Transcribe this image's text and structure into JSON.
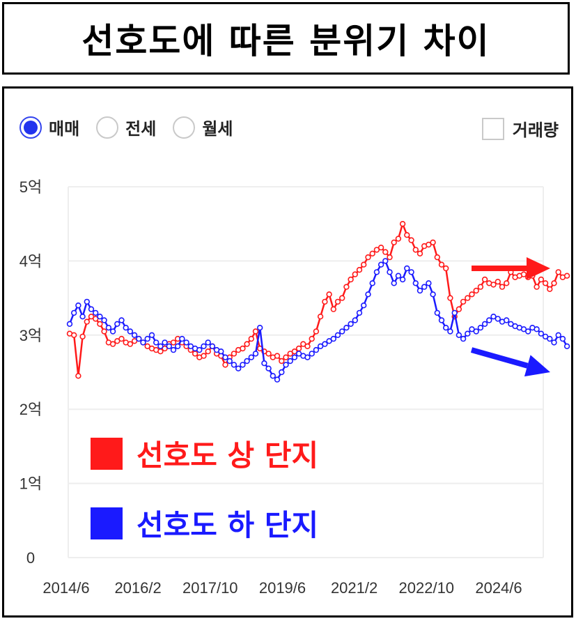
{
  "title": "선호도에 따른 분위기 차이",
  "controls": {
    "radios": [
      {
        "label": "매매",
        "selected": true
      },
      {
        "label": "전세",
        "selected": false
      },
      {
        "label": "월세",
        "selected": false
      }
    ],
    "volume_label": "거래량",
    "volume_checked": false
  },
  "colors": {
    "high": "#ff1a1a",
    "low": "#1a1aff",
    "grid": "#eeeeee"
  },
  "chart_data": {
    "type": "line",
    "y_ticks": [
      "0",
      "1억",
      "2억",
      "3억",
      "4억",
      "5억"
    ],
    "ylim": [
      0,
      5
    ],
    "xlim": [
      2014.5,
      2026.0
    ],
    "x_ticks": [
      {
        "label": "2014/6",
        "value": 2014.42
      },
      {
        "label": "2016/2",
        "value": 2016.08
      },
      {
        "label": "2017/10",
        "value": 2017.75
      },
      {
        "label": "2019/6",
        "value": 2019.42
      },
      {
        "label": "2021/2",
        "value": 2021.08
      },
      {
        "label": "2022/10",
        "value": 2022.75
      },
      {
        "label": "2024/6",
        "value": 2024.42
      }
    ],
    "grid": true,
    "series": [
      {
        "name": "선호도 상 단지",
        "color": "#ff1a1a",
        "points": [
          [
            2014.5,
            3.02
          ],
          [
            2014.6,
            3.0
          ],
          [
            2014.7,
            2.45
          ],
          [
            2014.8,
            2.98
          ],
          [
            2014.9,
            3.18
          ],
          [
            2015.0,
            3.25
          ],
          [
            2015.1,
            3.22
          ],
          [
            2015.2,
            3.15
          ],
          [
            2015.3,
            3.05
          ],
          [
            2015.4,
            2.9
          ],
          [
            2015.5,
            2.88
          ],
          [
            2015.6,
            2.92
          ],
          [
            2015.7,
            2.95
          ],
          [
            2015.8,
            2.9
          ],
          [
            2015.9,
            2.88
          ],
          [
            2016.0,
            2.92
          ],
          [
            2016.1,
            2.95
          ],
          [
            2016.2,
            2.9
          ],
          [
            2016.3,
            2.85
          ],
          [
            2016.4,
            2.82
          ],
          [
            2016.5,
            2.8
          ],
          [
            2016.6,
            2.78
          ],
          [
            2016.7,
            2.82
          ],
          [
            2016.8,
            2.88
          ],
          [
            2016.9,
            2.9
          ],
          [
            2017.0,
            2.95
          ],
          [
            2017.1,
            2.9
          ],
          [
            2017.2,
            2.85
          ],
          [
            2017.3,
            2.8
          ],
          [
            2017.4,
            2.75
          ],
          [
            2017.5,
            2.7
          ],
          [
            2017.6,
            2.72
          ],
          [
            2017.7,
            2.78
          ],
          [
            2017.8,
            2.85
          ],
          [
            2017.9,
            2.75
          ],
          [
            2018.0,
            2.72
          ],
          [
            2018.1,
            2.6
          ],
          [
            2018.2,
            2.7
          ],
          [
            2018.3,
            2.75
          ],
          [
            2018.4,
            2.8
          ],
          [
            2018.5,
            2.82
          ],
          [
            2018.6,
            2.88
          ],
          [
            2018.7,
            2.95
          ],
          [
            2018.8,
            3.05
          ],
          [
            2018.9,
            2.82
          ],
          [
            2019.0,
            2.78
          ],
          [
            2019.1,
            2.75
          ],
          [
            2019.2,
            2.7
          ],
          [
            2019.3,
            2.72
          ],
          [
            2019.4,
            2.65
          ],
          [
            2019.5,
            2.7
          ],
          [
            2019.6,
            2.75
          ],
          [
            2019.7,
            2.78
          ],
          [
            2019.8,
            2.82
          ],
          [
            2019.9,
            2.88
          ],
          [
            2020.0,
            2.85
          ],
          [
            2020.1,
            2.95
          ],
          [
            2020.2,
            3.05
          ],
          [
            2020.3,
            3.25
          ],
          [
            2020.4,
            3.45
          ],
          [
            2020.5,
            3.55
          ],
          [
            2020.6,
            3.35
          ],
          [
            2020.7,
            3.45
          ],
          [
            2020.8,
            3.5
          ],
          [
            2020.9,
            3.65
          ],
          [
            2021.0,
            3.75
          ],
          [
            2021.1,
            3.82
          ],
          [
            2021.2,
            3.88
          ],
          [
            2021.3,
            3.95
          ],
          [
            2021.4,
            4.05
          ],
          [
            2021.5,
            4.1
          ],
          [
            2021.6,
            4.15
          ],
          [
            2021.7,
            4.18
          ],
          [
            2021.8,
            4.12
          ],
          [
            2021.9,
            4.05
          ],
          [
            2022.0,
            4.25
          ],
          [
            2022.1,
            4.3
          ],
          [
            2022.2,
            4.5
          ],
          [
            2022.3,
            4.35
          ],
          [
            2022.4,
            4.28
          ],
          [
            2022.5,
            4.15
          ],
          [
            2022.6,
            4.1
          ],
          [
            2022.7,
            4.2
          ],
          [
            2022.8,
            4.22
          ],
          [
            2022.9,
            4.25
          ],
          [
            2023.0,
            4.05
          ],
          [
            2023.1,
            3.95
          ],
          [
            2023.2,
            3.9
          ],
          [
            2023.3,
            3.5
          ],
          [
            2023.4,
            3.25
          ],
          [
            2023.5,
            3.35
          ],
          [
            2023.6,
            3.45
          ],
          [
            2023.7,
            3.5
          ],
          [
            2023.8,
            3.55
          ],
          [
            2023.9,
            3.6
          ],
          [
            2024.0,
            3.65
          ],
          [
            2024.1,
            3.75
          ],
          [
            2024.2,
            3.7
          ],
          [
            2024.3,
            3.68
          ],
          [
            2024.4,
            3.72
          ],
          [
            2024.5,
            3.65
          ],
          [
            2024.6,
            3.7
          ],
          [
            2024.7,
            3.85
          ],
          [
            2024.8,
            3.78
          ],
          [
            2024.9,
            3.8
          ],
          [
            2025.0,
            3.82
          ],
          [
            2025.1,
            3.78
          ],
          [
            2025.2,
            3.8
          ],
          [
            2025.3,
            3.65
          ],
          [
            2025.4,
            3.75
          ],
          [
            2025.5,
            3.7
          ],
          [
            2025.6,
            3.62
          ],
          [
            2025.7,
            3.7
          ],
          [
            2025.8,
            3.85
          ],
          [
            2025.9,
            3.78
          ],
          [
            2026.0,
            3.8
          ]
        ]
      },
      {
        "name": "선호도 하 단지",
        "color": "#1a1aff",
        "points": [
          [
            2014.5,
            3.15
          ],
          [
            2014.6,
            3.3
          ],
          [
            2014.7,
            3.4
          ],
          [
            2014.8,
            3.25
          ],
          [
            2014.9,
            3.45
          ],
          [
            2015.0,
            3.35
          ],
          [
            2015.1,
            3.3
          ],
          [
            2015.2,
            3.25
          ],
          [
            2015.3,
            3.2
          ],
          [
            2015.4,
            3.1
          ],
          [
            2015.5,
            3.05
          ],
          [
            2015.6,
            3.15
          ],
          [
            2015.7,
            3.2
          ],
          [
            2015.8,
            3.1
          ],
          [
            2015.9,
            3.05
          ],
          [
            2016.0,
            3.0
          ],
          [
            2016.1,
            2.95
          ],
          [
            2016.2,
            2.9
          ],
          [
            2016.3,
            2.95
          ],
          [
            2016.4,
            3.0
          ],
          [
            2016.5,
            2.9
          ],
          [
            2016.6,
            2.85
          ],
          [
            2016.7,
            2.9
          ],
          [
            2016.8,
            2.85
          ],
          [
            2016.9,
            2.8
          ],
          [
            2017.0,
            2.85
          ],
          [
            2017.1,
            2.95
          ],
          [
            2017.2,
            2.9
          ],
          [
            2017.3,
            2.85
          ],
          [
            2017.4,
            2.82
          ],
          [
            2017.5,
            2.8
          ],
          [
            2017.6,
            2.85
          ],
          [
            2017.7,
            2.9
          ],
          [
            2017.8,
            2.85
          ],
          [
            2017.9,
            2.8
          ],
          [
            2018.0,
            2.78
          ],
          [
            2018.1,
            2.7
          ],
          [
            2018.2,
            2.65
          ],
          [
            2018.3,
            2.6
          ],
          [
            2018.4,
            2.55
          ],
          [
            2018.5,
            2.6
          ],
          [
            2018.6,
            2.65
          ],
          [
            2018.7,
            2.7
          ],
          [
            2018.8,
            2.75
          ],
          [
            2018.9,
            3.1
          ],
          [
            2019.0,
            2.62
          ],
          [
            2019.1,
            2.55
          ],
          [
            2019.2,
            2.45
          ],
          [
            2019.3,
            2.4
          ],
          [
            2019.4,
            2.5
          ],
          [
            2019.5,
            2.6
          ],
          [
            2019.6,
            2.65
          ],
          [
            2019.7,
            2.7
          ],
          [
            2019.8,
            2.75
          ],
          [
            2019.9,
            2.72
          ],
          [
            2020.0,
            2.7
          ],
          [
            2020.1,
            2.75
          ],
          [
            2020.2,
            2.8
          ],
          [
            2020.3,
            2.85
          ],
          [
            2020.4,
            2.88
          ],
          [
            2020.5,
            2.92
          ],
          [
            2020.6,
            2.95
          ],
          [
            2020.7,
            3.0
          ],
          [
            2020.8,
            3.05
          ],
          [
            2020.9,
            3.1
          ],
          [
            2021.0,
            3.15
          ],
          [
            2021.1,
            3.2
          ],
          [
            2021.2,
            3.3
          ],
          [
            2021.3,
            3.4
          ],
          [
            2021.4,
            3.55
          ],
          [
            2021.5,
            3.7
          ],
          [
            2021.6,
            3.85
          ],
          [
            2021.7,
            3.95
          ],
          [
            2021.8,
            4.0
          ],
          [
            2021.9,
            3.85
          ],
          [
            2022.0,
            3.7
          ],
          [
            2022.1,
            3.8
          ],
          [
            2022.2,
            3.75
          ],
          [
            2022.3,
            3.9
          ],
          [
            2022.4,
            3.85
          ],
          [
            2022.5,
            3.7
          ],
          [
            2022.6,
            3.6
          ],
          [
            2022.7,
            3.65
          ],
          [
            2022.8,
            3.7
          ],
          [
            2022.9,
            3.55
          ],
          [
            2023.0,
            3.3
          ],
          [
            2023.1,
            3.2
          ],
          [
            2023.2,
            3.1
          ],
          [
            2023.3,
            3.05
          ],
          [
            2023.4,
            3.3
          ],
          [
            2023.5,
            3.0
          ],
          [
            2023.6,
            2.95
          ],
          [
            2023.7,
            3.02
          ],
          [
            2023.8,
            3.08
          ],
          [
            2023.9,
            3.05
          ],
          [
            2024.0,
            3.1
          ],
          [
            2024.1,
            3.15
          ],
          [
            2024.2,
            3.2
          ],
          [
            2024.3,
            3.25
          ],
          [
            2024.4,
            3.22
          ],
          [
            2024.5,
            3.18
          ],
          [
            2024.6,
            3.2
          ],
          [
            2024.7,
            3.15
          ],
          [
            2024.8,
            3.12
          ],
          [
            2024.9,
            3.1
          ],
          [
            2025.0,
            3.08
          ],
          [
            2025.1,
            3.05
          ],
          [
            2025.2,
            3.1
          ],
          [
            2025.3,
            3.08
          ],
          [
            2025.4,
            3.02
          ],
          [
            2025.5,
            2.98
          ],
          [
            2025.6,
            2.95
          ],
          [
            2025.7,
            2.9
          ],
          [
            2025.8,
            3.0
          ],
          [
            2025.9,
            2.95
          ],
          [
            2026.0,
            2.85
          ]
        ]
      }
    ],
    "legend": [
      {
        "label": "선호도 상 단지",
        "color": "#ff1a1a"
      },
      {
        "label": "선호도 하 단지",
        "color": "#1a1aff"
      }
    ],
    "annotations": [
      {
        "type": "arrow",
        "color": "#ff1a1a",
        "from": [
          2025.0,
          3.9
        ],
        "to": [
          2026.0,
          3.9
        ],
        "meaning": "flat"
      },
      {
        "type": "arrow",
        "color": "#1a1aff",
        "from": [
          2025.0,
          2.8
        ],
        "to": [
          2026.0,
          2.5
        ],
        "meaning": "down"
      }
    ]
  }
}
